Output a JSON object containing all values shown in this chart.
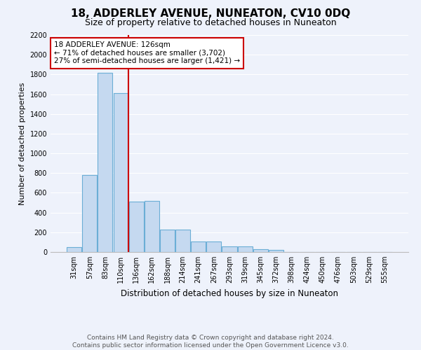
{
  "title": "18, ADDERLEY AVENUE, NUNEATON, CV10 0DQ",
  "subtitle": "Size of property relative to detached houses in Nuneaton",
  "xlabel": "Distribution of detached houses by size in Nuneaton",
  "ylabel": "Number of detached properties",
  "bar_labels": [
    "31sqm",
    "57sqm",
    "83sqm",
    "110sqm",
    "136sqm",
    "162sqm",
    "188sqm",
    "214sqm",
    "241sqm",
    "267sqm",
    "293sqm",
    "319sqm",
    "345sqm",
    "372sqm",
    "398sqm",
    "424sqm",
    "450sqm",
    "476sqm",
    "503sqm",
    "529sqm",
    "555sqm"
  ],
  "bar_values": [
    50,
    780,
    1820,
    1610,
    510,
    520,
    230,
    230,
    105,
    105,
    55,
    55,
    30,
    20,
    0,
    0,
    0,
    0,
    0,
    0,
    0
  ],
  "bar_color": "#c5d9f0",
  "bar_edge_color": "#6baed6",
  "ylim": [
    0,
    2200
  ],
  "yticks": [
    0,
    200,
    400,
    600,
    800,
    1000,
    1200,
    1400,
    1600,
    1800,
    2000,
    2200
  ],
  "red_line_x": 3.5,
  "annotation_text": "18 ADDERLEY AVENUE: 126sqm\n← 71% of detached houses are smaller (3,702)\n27% of semi-detached houses are larger (1,421) →",
  "annotation_box_color": "#ffffff",
  "annotation_border_color": "#cc0000",
  "footer_line1": "Contains HM Land Registry data © Crown copyright and database right 2024.",
  "footer_line2": "Contains public sector information licensed under the Open Government Licence v3.0.",
  "bg_color": "#eef2fb",
  "grid_color": "#ffffff",
  "red_line_color": "#cc0000",
  "title_fontsize": 11,
  "subtitle_fontsize": 9,
  "ylabel_fontsize": 8,
  "xlabel_fontsize": 8.5,
  "tick_fontsize": 7,
  "footer_fontsize": 6.5,
  "annotation_fontsize": 7.5
}
